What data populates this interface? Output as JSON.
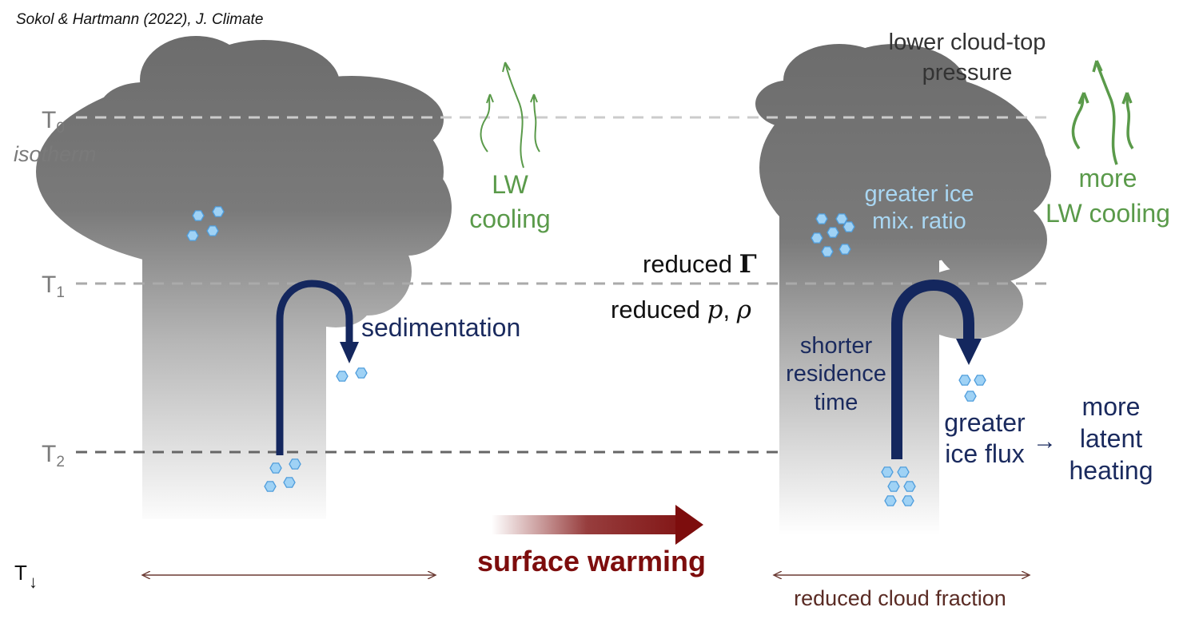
{
  "citation": "Sokol & Hartmann (2022), J. Climate",
  "isotherms": {
    "t0_main": "T",
    "t0_sub": "0",
    "t1_main": "T",
    "t1_sub": "1",
    "t2_main": "T",
    "t2_sub": "2",
    "isotherm_label": "isotherm"
  },
  "left_cloud": {
    "lw_line1": "LW",
    "lw_line2": "cooling",
    "sedimentation": "sedimentation"
  },
  "middle": {
    "reduced_gamma_text": "reduced ",
    "gamma_symbol": "Γ",
    "reduced_p_text": "reduced ",
    "p_symbol": "p",
    "comma": ", ",
    "rho_symbol": "ρ"
  },
  "right_cloud": {
    "ctp_line1": "lower cloud-top",
    "ctp_line2": "pressure",
    "ice_mix_line1": "greater ice",
    "ice_mix_line2": "mix. ratio",
    "more_lw_line1": "more",
    "more_lw_line2": "LW cooling",
    "residence_line1": "shorter",
    "residence_line2": "residence",
    "residence_line3": "time",
    "ice_flux_line1": "greater",
    "ice_flux_line2": "ice flux",
    "arrow_glyph": "→",
    "latent_line1": "more",
    "latent_line2": "latent",
    "latent_line3": "heating",
    "cloud_fraction": "reduced cloud fraction"
  },
  "bottom": {
    "warming": "surface warming",
    "t_axis": "T",
    "t_arrow": "↓"
  },
  "colors": {
    "cloud": "#6c6c6c",
    "sedimentation_arrow": "#14275e",
    "lw_green": "#5a9a4a",
    "warming_red": "#7d0d0d",
    "ice_crystal": "#9fd2f5"
  }
}
